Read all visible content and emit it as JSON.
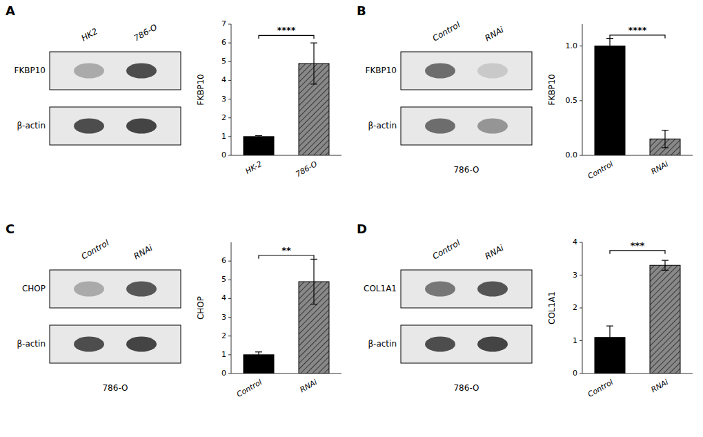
{
  "chart_data": [
    {
      "type": "bar",
      "title": "A",
      "categories": [
        "HK-2",
        "786-O"
      ],
      "values": [
        1.0,
        4.9
      ],
      "errors": [
        0.05,
        1.1
      ],
      "colors": [
        "#000000",
        "#888888"
      ],
      "y_label": "FKBP10",
      "ylim": [
        0,
        7
      ],
      "yticks": [
        0,
        1,
        2,
        3,
        4,
        5,
        6,
        7
      ],
      "annotations": [
        {
          "text": "****",
          "y": 6.4
        }
      ],
      "blot": {
        "lanes": [
          "HK2",
          "786-O"
        ],
        "rows": [
          "FKBP10",
          "β-actin"
        ]
      }
    },
    {
      "type": "bar",
      "title": "B",
      "categories": [
        "Control",
        "RNAi"
      ],
      "values": [
        1.0,
        0.15
      ],
      "errors": [
        0.07,
        0.08
      ],
      "colors": [
        "#000000",
        "#888888"
      ],
      "y_label": "FKBP10",
      "ylim": [
        0.0,
        1.2
      ],
      "yticks": [
        {
          "value": 0.0,
          "label": "0.0"
        },
        0.5,
        {
          "value": 1.0,
          "label": "1.0"
        }
      ],
      "annotations": [
        {
          "text": "****",
          "y": 1.1
        }
      ],
      "blot": {
        "lanes": [
          "Control",
          "RNAi"
        ],
        "rows": [
          "FKBP10",
          "β-actin"
        ],
        "caption": "786-O"
      }
    },
    {
      "type": "bar",
      "title": "C",
      "categories": [
        "Control",
        "RNAi"
      ],
      "values": [
        1.0,
        4.9
      ],
      "errors": [
        0.15,
        1.2
      ],
      "colors": [
        "#000000",
        "#888888"
      ],
      "y_label": "CHOP",
      "ylim": [
        0,
        7
      ],
      "yticks": [
        0,
        1,
        2,
        3,
        4,
        5,
        6
      ],
      "annotations": [
        {
          "text": "**",
          "y": 6.3
        }
      ],
      "blot": {
        "lanes": [
          "Control",
          "RNAi"
        ],
        "rows": [
          "CHOP",
          "β-actin"
        ],
        "caption": "786-O"
      }
    },
    {
      "type": "bar",
      "title": "D",
      "categories": [
        "Control",
        "RNAi"
      ],
      "values": [
        1.1,
        3.3
      ],
      "errors": [
        0.35,
        0.15
      ],
      "colors": [
        "#000000",
        "#888888"
      ],
      "y_label": "COL1A1",
      "ylim": [
        0,
        4
      ],
      "yticks": [
        0,
        1,
        2,
        3,
        4
      ],
      "annotations": [
        {
          "text": "***",
          "y": 3.75
        }
      ],
      "blot": {
        "lanes": [
          "Control",
          "RNAi"
        ],
        "rows": [
          "COL1A1",
          "β-actin"
        ],
        "caption": "786-O"
      }
    }
  ]
}
